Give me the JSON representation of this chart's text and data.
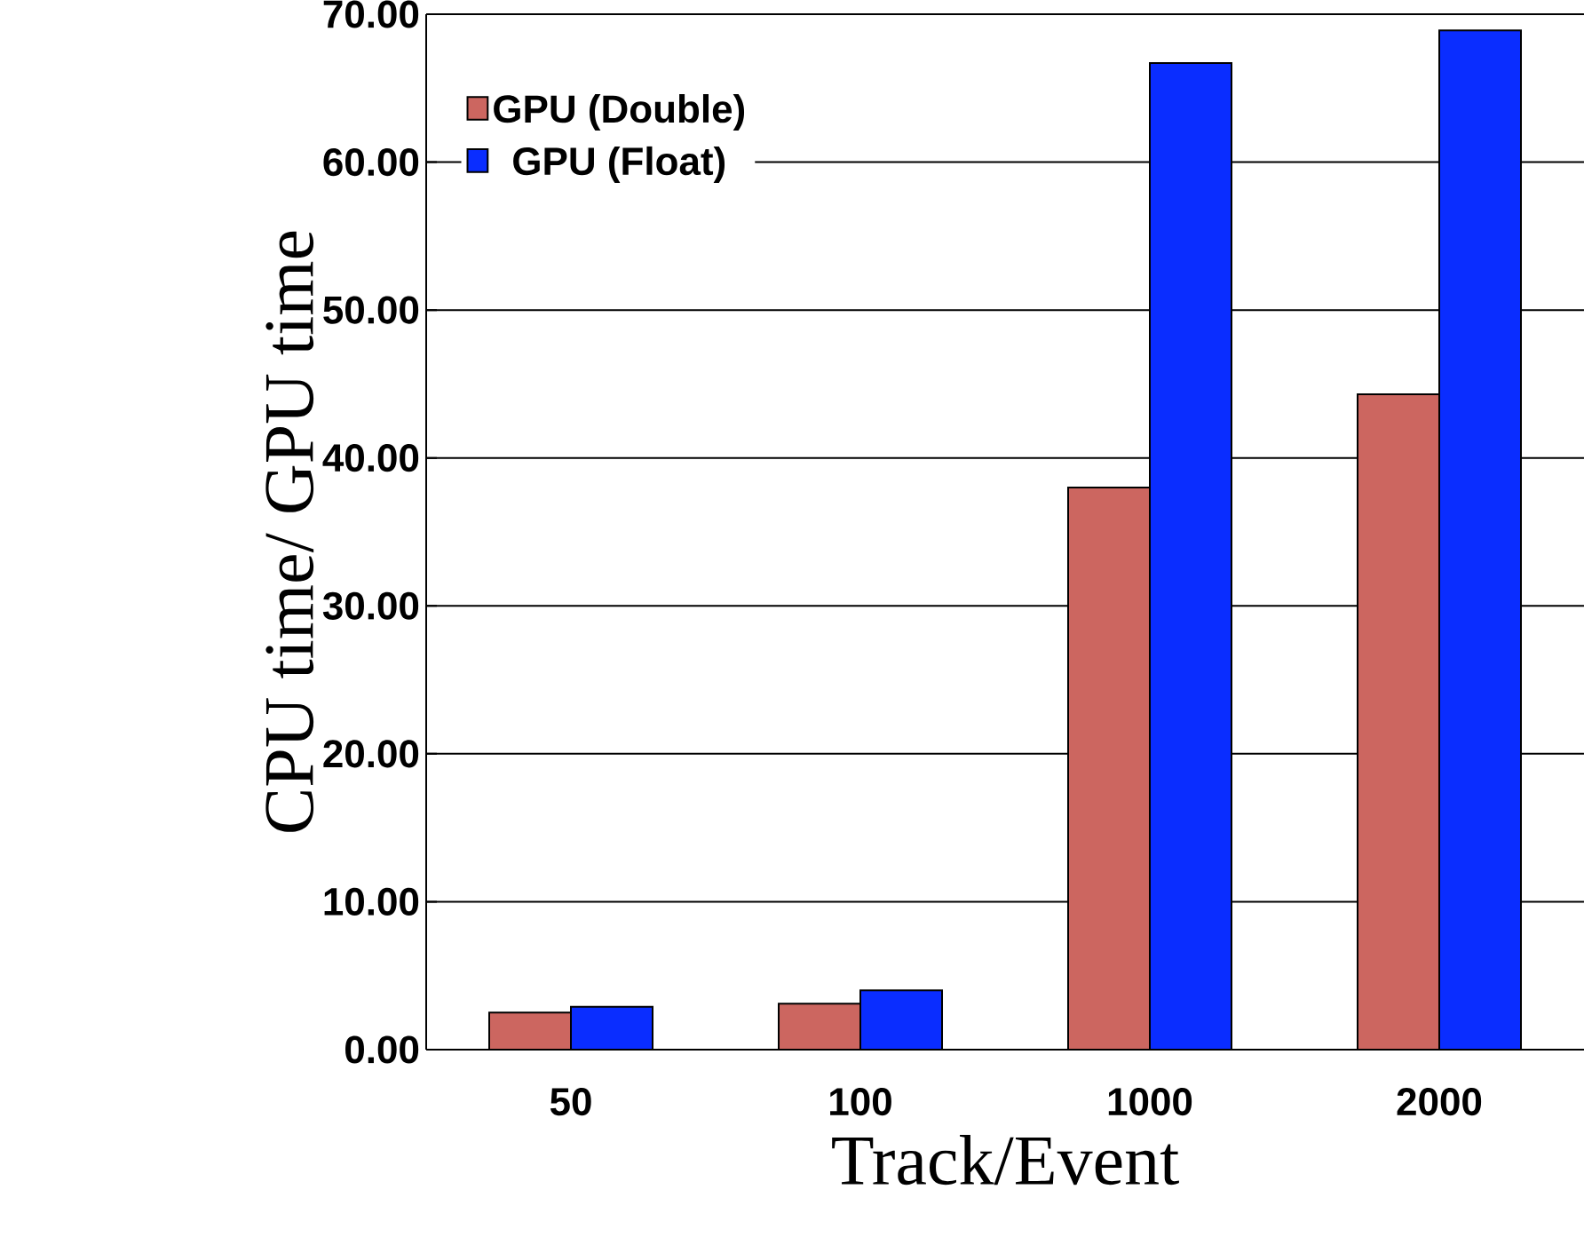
{
  "chart_data": {
    "type": "bar",
    "xlabel": "Track/Event",
    "ylabel": "CPU time/ GPU time",
    "categories": [
      "50",
      "100",
      "1000",
      "2000"
    ],
    "series": [
      {
        "name": "GPU (Double)",
        "color": "#cc6660",
        "values": [
          2.5,
          3.1,
          38.0,
          44.3
        ]
      },
      {
        "name": "GPU (Float)",
        "color": "#0a2dff",
        "values": [
          2.9,
          4.0,
          66.7,
          68.9
        ]
      }
    ],
    "ylim": [
      0,
      70
    ],
    "yticks": [
      {
        "value": 0,
        "label": "0.00"
      },
      {
        "value": 10,
        "label": "10.00"
      },
      {
        "value": 20,
        "label": "20.00"
      },
      {
        "value": 30,
        "label": "30.00"
      },
      {
        "value": 40,
        "label": "40.00"
      },
      {
        "value": 50,
        "label": "50.00"
      },
      {
        "value": 60,
        "label": "60.00"
      },
      {
        "value": 70,
        "label": "70.00"
      }
    ],
    "grid": "y",
    "legend": "top left"
  }
}
